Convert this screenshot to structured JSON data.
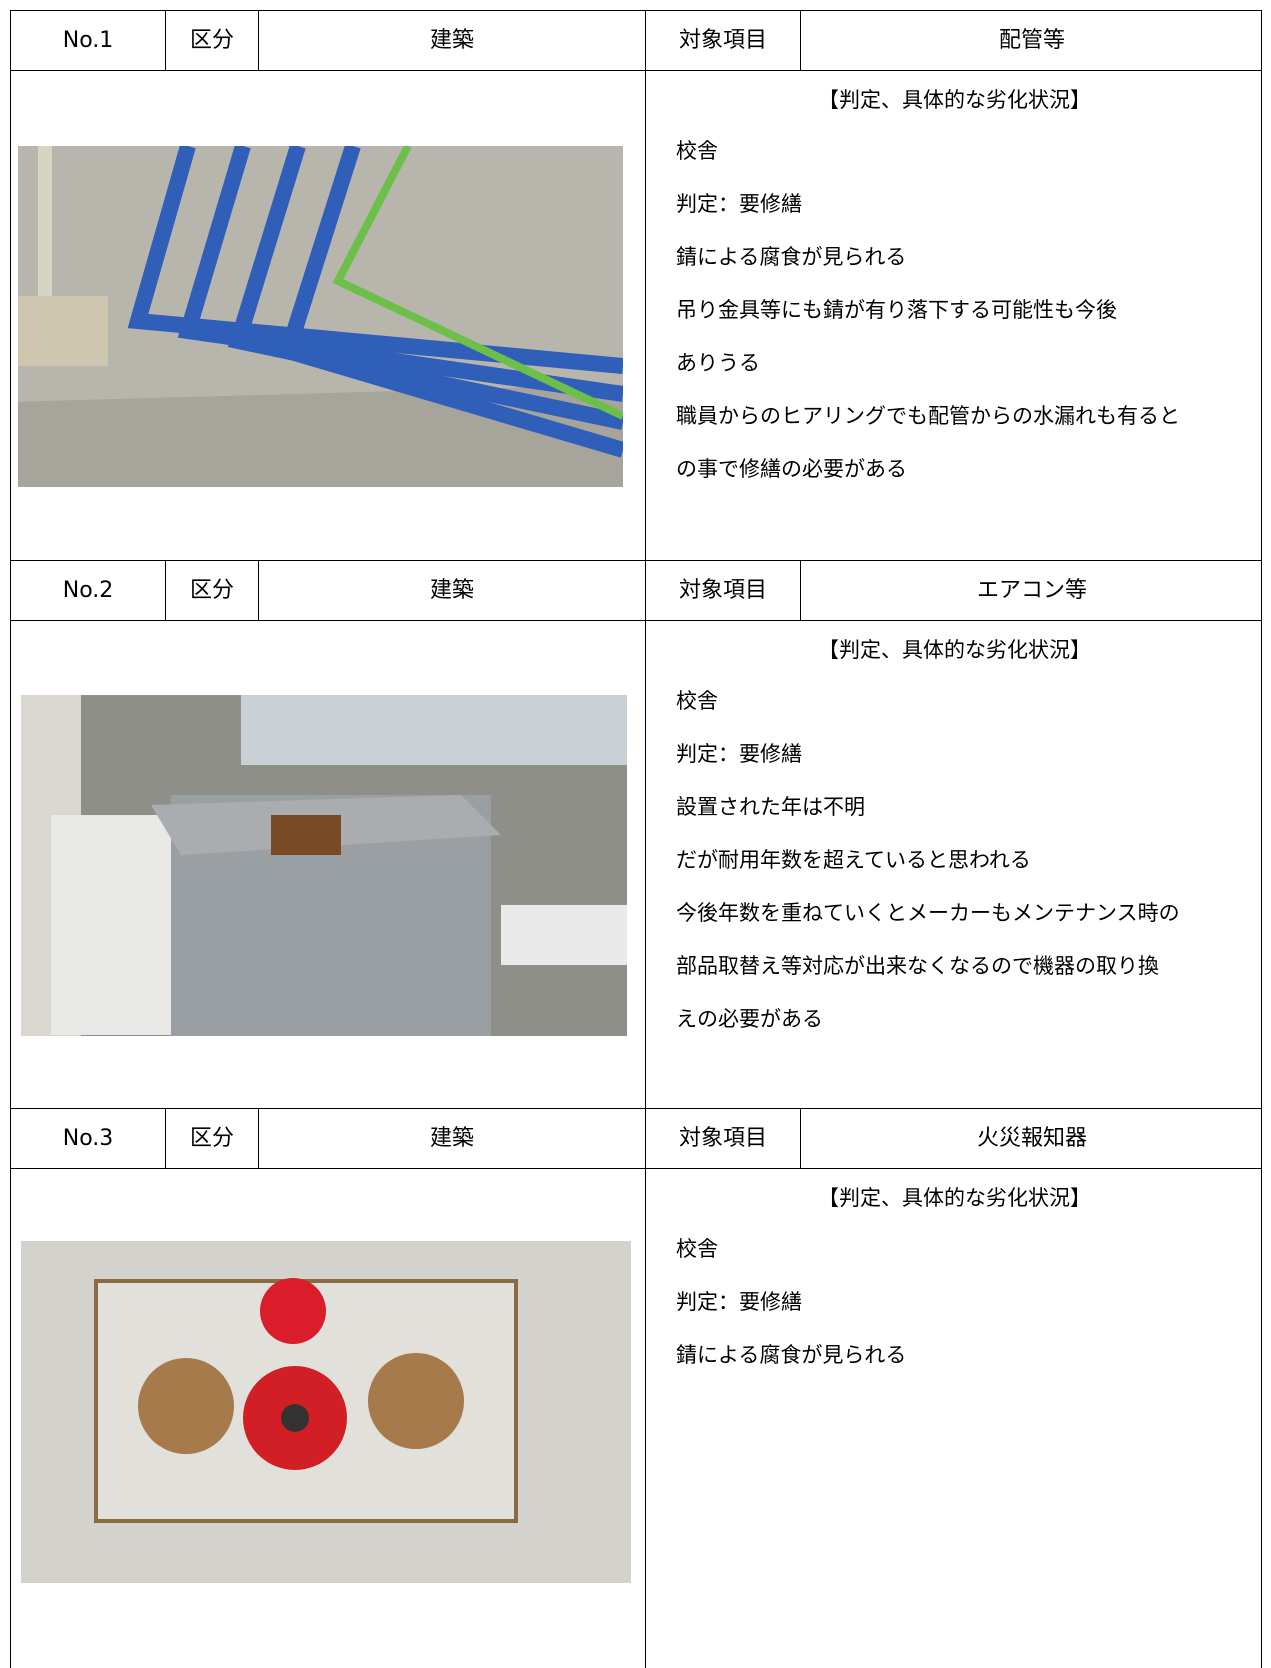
{
  "blocks": [
    {
      "no": "No.1",
      "category_label": "区分",
      "category": "建築",
      "item_label": "対象項目",
      "item": "配管等",
      "heading": "【判定、具体的な劣化状況】",
      "lines": [
        "校舎",
        "判定：要修繕",
        "錆による腐食が見られる",
        "吊り金具等にも錆が有り落下する可能性も今後",
        "ありうる",
        "職員からのヒアリングでも配管からの水漏れも有ると",
        "の事で修繕の必要がある"
      ]
    },
    {
      "no": "No.2",
      "category_label": "区分",
      "category": "建築",
      "item_label": "対象項目",
      "item": "エアコン等",
      "heading": "【判定、具体的な劣化状況】",
      "lines": [
        "校舎",
        "判定：要修繕",
        "設置された年は不明",
        "だが耐用年数を超えていると思われる",
        "今後年数を重ねていくとメーカーもメンテナンス時の",
        "部品取替え等対応が出来なくなるので機器の取り換",
        "えの必要がある"
      ]
    },
    {
      "no": "No.3",
      "category_label": "区分",
      "category": "建築",
      "item_label": "対象項目",
      "item": "火災報知器",
      "heading": "【判定、具体的な劣化状況】",
      "lines": [
        "校舎",
        "判定：要修繕",
        "錆による腐食が見られる"
      ]
    }
  ]
}
